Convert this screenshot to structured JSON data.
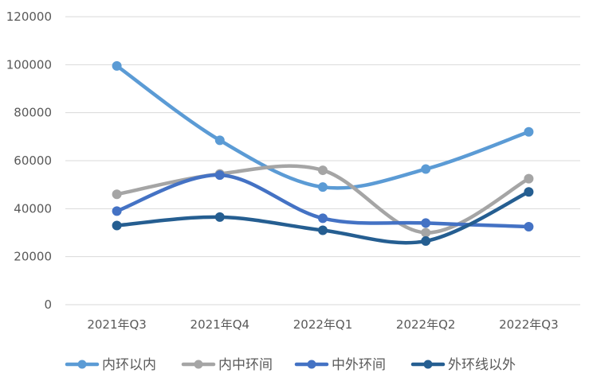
{
  "chart_data": {
    "type": "line",
    "smooth": true,
    "title": "",
    "xlabel": "",
    "ylabel": "",
    "categories": [
      "2021年Q3",
      "2021年Q4",
      "2022年Q1",
      "2022年Q2",
      "2022年Q3"
    ],
    "ylim": [
      0,
      120000
    ],
    "yticks": [
      0,
      20000,
      40000,
      60000,
      80000,
      100000,
      120000
    ],
    "ytick_labels": [
      "0",
      "20000",
      "40000",
      "60000",
      "80000",
      "100000",
      "120000"
    ],
    "grid": true,
    "legend_position": "bottom",
    "series": [
      {
        "name": "内环以内",
        "color": "#5B9BD5",
        "values": [
          99500,
          68500,
          49000,
          56500,
          72000
        ]
      },
      {
        "name": "内中环间",
        "color": "#A5A5A5",
        "values": [
          46000,
          54500,
          56000,
          30000,
          52500
        ]
      },
      {
        "name": "中外环间",
        "color": "#4472C4",
        "values": [
          39000,
          54000,
          36000,
          34000,
          32500
        ]
      },
      {
        "name": "外环线以外",
        "color": "#255E91",
        "values": [
          33000,
          36500,
          31000,
          26500,
          47000
        ]
      }
    ]
  }
}
